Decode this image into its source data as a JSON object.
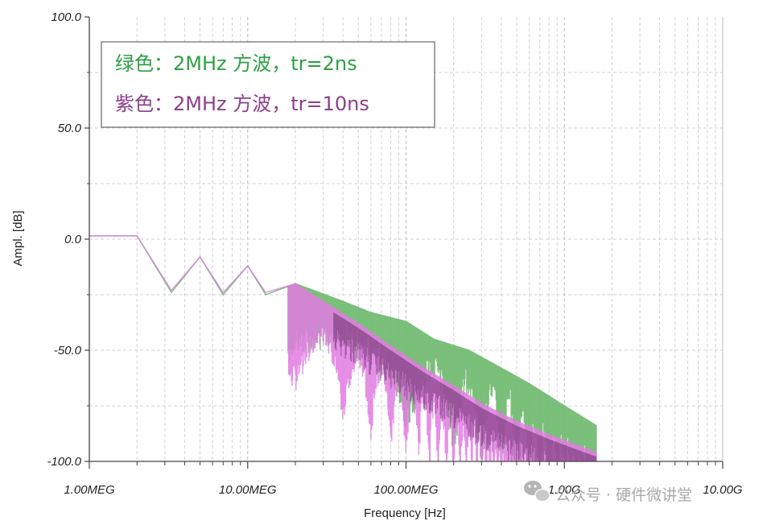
{
  "chart_data": {
    "type": "line",
    "xscale": "log",
    "xlabel": "Frequency [Hz]",
    "ylabel": "Ampl. [dB]",
    "xlim": [
      1000000,
      10000000000
    ],
    "ylim": [
      -100,
      100
    ],
    "grid": true,
    "legend_position": "top-left",
    "y_ticks": [
      {
        "value": 100,
        "label": "100.0"
      },
      {
        "value": 50,
        "label": "50.0"
      },
      {
        "value": 0,
        "label": "0.0"
      },
      {
        "value": -50,
        "label": "-50.0"
      },
      {
        "value": -100,
        "label": "-100.0"
      }
    ],
    "x_ticks": [
      {
        "value": 1000000,
        "label": "1.00MEG"
      },
      {
        "value": 10000000,
        "label": "10.00MEG"
      },
      {
        "value": 100000000,
        "label": "100.00MEG"
      },
      {
        "value": 1000000000,
        "label": "1.00G"
      },
      {
        "value": 10000000000,
        "label": "10.00G"
      }
    ],
    "series": [
      {
        "name": "绿色：2MHz 方波，tr=2ns",
        "legend_label": "绿色：2MHz 方波，tr=2ns",
        "color": "#6bb86b",
        "legend_color": "#2ea043",
        "rise_time_ns": 2,
        "x": [
          1000000,
          2000000,
          3300000,
          5000000,
          7000000,
          10000000,
          13000000,
          20000000,
          40000000,
          60000000,
          100000000,
          150000000,
          250000000,
          400000000,
          600000000,
          1000000000,
          1600000000
        ],
        "y": [
          1.5,
          1.5,
          -24,
          -8,
          -25,
          -12,
          -25,
          -20,
          -28,
          -33,
          -37,
          -45,
          -50,
          -58,
          -65,
          -75,
          -84
        ]
      },
      {
        "name": "紫色：2MHz 方波，tr=10ns",
        "legend_label": "紫色：2MHz 方波，tr=10ns",
        "color": "#e27be2",
        "legend_color": "#8b3f8b",
        "rise_time_ns": 10,
        "x": [
          1000000,
          2000000,
          3300000,
          5000000,
          7000000,
          10000000,
          13000000,
          20000000,
          30000000,
          50000000,
          80000000,
          130000000,
          200000000,
          300000000,
          500000000,
          800000000,
          1600000000
        ],
        "y": [
          1.5,
          1.5,
          -23,
          -8,
          -24,
          -12,
          -24,
          -20,
          -28,
          -38,
          -48,
          -58,
          -66,
          -74,
          -82,
          -88,
          -96
        ]
      }
    ]
  },
  "watermark": {
    "icon": "wechat-icon",
    "text": "公众号 · 硬件微讲堂"
  }
}
